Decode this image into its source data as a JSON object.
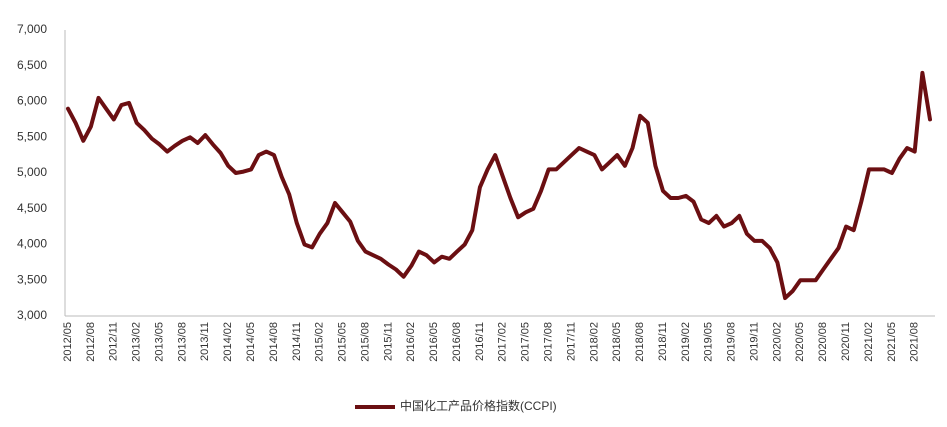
{
  "chart_data": {
    "type": "line",
    "categories": [
      "2012/05",
      null,
      null,
      "2012/08",
      null,
      null,
      "2012/11",
      null,
      null,
      "2013/02",
      null,
      null,
      "2013/05",
      null,
      null,
      "2013/08",
      null,
      null,
      "2013/11",
      null,
      null,
      "2014/02",
      null,
      null,
      "2014/05",
      null,
      null,
      "2014/08",
      null,
      null,
      "2014/11",
      null,
      null,
      "2015/02",
      null,
      null,
      "2015/05",
      null,
      null,
      "2015/08",
      null,
      null,
      "2015/11",
      null,
      null,
      "2016/02",
      null,
      null,
      "2016/05",
      null,
      null,
      "2016/08",
      null,
      null,
      "2016/11",
      null,
      null,
      "2017/02",
      null,
      null,
      "2017/05",
      null,
      null,
      "2017/08",
      null,
      null,
      "2017/11",
      null,
      null,
      "2018/02",
      null,
      null,
      "2018/05",
      null,
      null,
      "2018/08",
      null,
      null,
      "2018/11",
      null,
      null,
      "2019/02",
      null,
      null,
      "2019/05",
      null,
      null,
      "2019/08",
      null,
      null,
      "2019/11",
      null,
      null,
      "2020/02",
      null,
      null,
      "2020/05",
      null,
      null,
      "2020/08",
      null,
      null,
      "2020/11",
      null,
      null,
      "2021/02",
      null,
      null,
      "2021/05",
      null,
      null,
      "2021/08",
      null,
      null
    ],
    "series": [
      {
        "name": "中国化工产品价格指数(CCPI)",
        "color": "#6b0f12",
        "values": [
          5900,
          5700,
          5450,
          5650,
          6050,
          5900,
          5750,
          5950,
          5980,
          5700,
          5600,
          5480,
          5400,
          5300,
          5380,
          5450,
          5500,
          5420,
          5530,
          5400,
          5280,
          5100,
          5000,
          5020,
          5050,
          5250,
          5300,
          5250,
          4950,
          4700,
          4300,
          4000,
          3960,
          4150,
          4300,
          4580,
          4450,
          4320,
          4050,
          3900,
          3850,
          3800,
          3720,
          3650,
          3550,
          3700,
          3900,
          3850,
          3750,
          3830,
          3800,
          3900,
          4000,
          4200,
          4800,
          5050,
          5250,
          4950,
          4650,
          4380,
          4450,
          4500,
          4750,
          5050,
          5050,
          5150,
          5250,
          5350,
          5300,
          5250,
          5050,
          5150,
          5250,
          5100,
          5350,
          5800,
          5700,
          5100,
          4750,
          4650,
          4650,
          4680,
          4600,
          4350,
          4300,
          4400,
          4250,
          4300,
          4400,
          4150,
          4050,
          4050,
          3950,
          3750,
          3250,
          3350,
          3500,
          3500,
          3500,
          3650,
          3800,
          3950,
          4250,
          4200,
          4600,
          5050,
          5050,
          5050,
          5000,
          5200,
          5350,
          5300,
          6400,
          5750
        ]
      }
    ],
    "ylim": [
      3000,
      7000
    ],
    "yticks": [
      {
        "value": 3000,
        "label": "3,000"
      },
      {
        "value": 3500,
        "label": "3,500"
      },
      {
        "value": 4000,
        "label": "4,000"
      },
      {
        "value": 4500,
        "label": "4,500"
      },
      {
        "value": 5000,
        "label": "5,000"
      },
      {
        "value": 5500,
        "label": "5,500"
      },
      {
        "value": 6000,
        "label": "6,000"
      },
      {
        "value": 6500,
        "label": "6,500"
      },
      {
        "value": 7000,
        "label": "7,000"
      }
    ],
    "grid": false
  }
}
